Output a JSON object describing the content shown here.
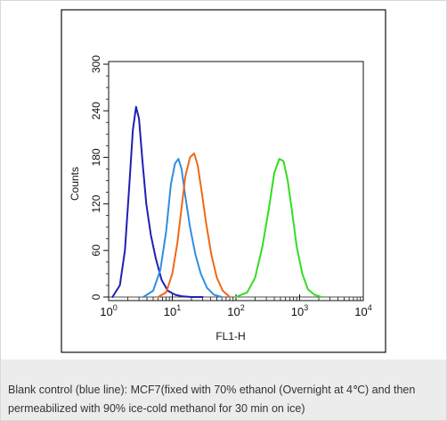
{
  "chart_data": {
    "type": "line",
    "xlabel": "FL1-H",
    "ylabel": "Counts",
    "xscale": "log",
    "xlim": [
      1,
      10000
    ],
    "ylim": [
      0,
      300
    ],
    "x_ticks": [
      {
        "value": 1,
        "base": "10",
        "exp": "0"
      },
      {
        "value": 10,
        "base": "10",
        "exp": "1"
      },
      {
        "value": 100,
        "base": "10",
        "exp": "2"
      },
      {
        "value": 1000,
        "base": "10",
        "exp": "3"
      },
      {
        "value": 10000,
        "base": "10",
        "exp": "4"
      }
    ],
    "y_ticks": [
      "0",
      "60",
      "120",
      "180",
      "240",
      "300"
    ],
    "series": [
      {
        "color": "#1f1fb4",
        "x": [
          1.15,
          1.5,
          1.8,
          2.1,
          2.4,
          2.7,
          3.0,
          3.4,
          3.9,
          4.6,
          5.5,
          6.8,
          8.5,
          11,
          14,
          20,
          30
        ],
        "y": [
          0,
          15,
          60,
          140,
          215,
          245,
          230,
          175,
          120,
          80,
          50,
          22,
          8,
          3,
          1,
          0,
          0
        ]
      },
      {
        "color": "#2f8fe0",
        "x": [
          3.5,
          5,
          6.5,
          8,
          9.5,
          11,
          12.5,
          14,
          16,
          19,
          23,
          28,
          35,
          45,
          60
        ],
        "y": [
          0,
          8,
          35,
          85,
          145,
          172,
          178,
          165,
          130,
          90,
          55,
          30,
          12,
          3,
          0
        ]
      },
      {
        "color": "#f06818",
        "x": [
          6,
          8,
          10,
          12,
          14,
          16,
          19,
          22,
          25,
          29,
          34,
          41,
          50,
          62,
          80
        ],
        "y": [
          0,
          6,
          30,
          70,
          115,
          155,
          180,
          185,
          170,
          135,
          95,
          55,
          25,
          8,
          0
        ]
      },
      {
        "color": "#33dd22",
        "x": [
          100,
          150,
          200,
          260,
          330,
          400,
          480,
          560,
          650,
          760,
          900,
          1100,
          1350,
          1700,
          2200
        ],
        "y": [
          0,
          6,
          25,
          65,
          115,
          160,
          178,
          175,
          150,
          110,
          65,
          30,
          10,
          3,
          0
        ]
      }
    ]
  },
  "caption": {
    "text": "Blank control (blue line): MCF7(fixed with 70% ethanol (Overnight at 4℃) and then permeabilized with 90% ice-cold methanol for 30 min on ice)"
  }
}
